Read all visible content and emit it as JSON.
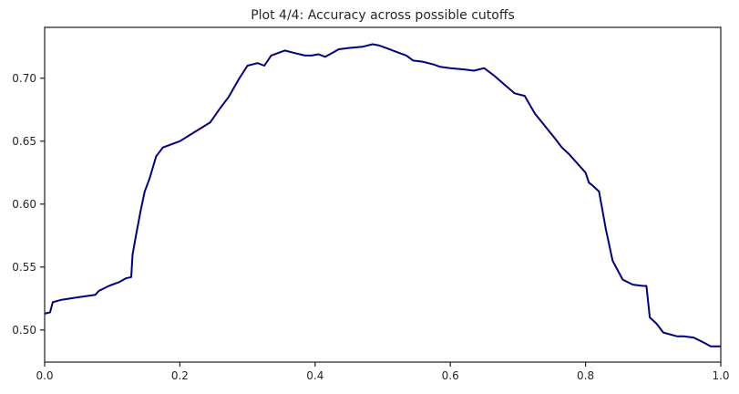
{
  "chart_data": {
    "type": "line",
    "title": "Plot 4/4: Accuracy across possible cutoffs",
    "xlabel": "",
    "ylabel": "",
    "xlim": [
      0.0,
      1.0
    ],
    "ylim": [
      0.4745,
      0.7404
    ],
    "grid": false,
    "x_ticks": [
      0.0,
      0.2,
      0.4,
      0.6,
      0.8,
      1.0
    ],
    "x_tick_labels": [
      "0.0",
      "0.2",
      "0.4",
      "0.6",
      "0.8",
      "1.0"
    ],
    "y_ticks": [
      0.5,
      0.55,
      0.6,
      0.65,
      0.7
    ],
    "y_tick_labels": [
      "0.50",
      "0.55",
      "0.60",
      "0.65",
      "0.70"
    ],
    "line_color": "#000080",
    "series": [
      {
        "name": "",
        "x": [
          0.0,
          0.008,
          0.012,
          0.025,
          0.05,
          0.075,
          0.08,
          0.095,
          0.11,
          0.12,
          0.128,
          0.13,
          0.135,
          0.142,
          0.148,
          0.155,
          0.165,
          0.175,
          0.2,
          0.215,
          0.23,
          0.245,
          0.258,
          0.272,
          0.288,
          0.3,
          0.315,
          0.325,
          0.335,
          0.345,
          0.355,
          0.37,
          0.385,
          0.395,
          0.405,
          0.415,
          0.425,
          0.435,
          0.45,
          0.47,
          0.485,
          0.495,
          0.505,
          0.52,
          0.535,
          0.545,
          0.56,
          0.575,
          0.585,
          0.6,
          0.62,
          0.635,
          0.65,
          0.665,
          0.68,
          0.695,
          0.71,
          0.725,
          0.74,
          0.755,
          0.765,
          0.775,
          0.8,
          0.805,
          0.81,
          0.82,
          0.83,
          0.84,
          0.855,
          0.87,
          0.885,
          0.89,
          0.895,
          0.905,
          0.915,
          0.935,
          0.945,
          0.96,
          0.975,
          0.985,
          1.0
        ],
        "values": [
          0.513,
          0.514,
          0.522,
          0.524,
          0.526,
          0.528,
          0.531,
          0.535,
          0.538,
          0.541,
          0.542,
          0.56,
          0.575,
          0.595,
          0.61,
          0.62,
          0.638,
          0.645,
          0.65,
          0.655,
          0.66,
          0.665,
          0.675,
          0.685,
          0.7,
          0.71,
          0.712,
          0.71,
          0.718,
          0.72,
          0.722,
          0.72,
          0.718,
          0.718,
          0.719,
          0.717,
          0.72,
          0.723,
          0.724,
          0.725,
          0.727,
          0.726,
          0.724,
          0.721,
          0.718,
          0.714,
          0.713,
          0.711,
          0.709,
          0.708,
          0.707,
          0.706,
          0.708,
          0.702,
          0.695,
          0.688,
          0.686,
          0.672,
          0.662,
          0.652,
          0.645,
          0.64,
          0.625,
          0.617,
          0.615,
          0.61,
          0.58,
          0.555,
          0.54,
          0.536,
          0.535,
          0.535,
          0.51,
          0.505,
          0.498,
          0.495,
          0.495,
          0.494,
          0.49,
          0.487,
          0.487
        ]
      }
    ]
  }
}
